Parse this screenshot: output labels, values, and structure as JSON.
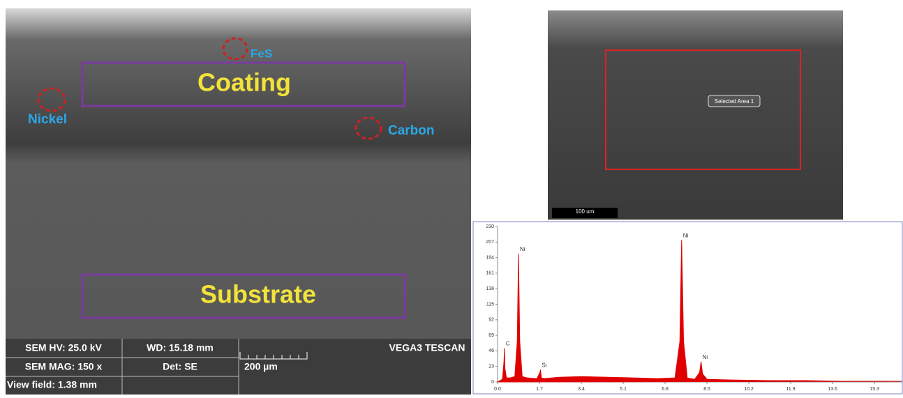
{
  "sem_left": {
    "labels": {
      "fes": "FeS",
      "coating": "Coating",
      "nickel": "Nickel",
      "carbon": "Carbon",
      "substrate": "Substrate"
    },
    "info": {
      "hv": "SEM HV: 25.0 kV",
      "wd": "WD: 15.18 mm",
      "brand": "VEGA3 TESCAN",
      "mag": "SEM MAG: 150 x",
      "det": "Det: SE",
      "scale": "200 µm",
      "view": "View field: 1.38 mm"
    }
  },
  "sem_right": {
    "area": "Selected Area 1",
    "scale": "100 um"
  },
  "chart_data": {
    "type": "area",
    "color": "#e00000",
    "x": [
      0,
      0.2,
      0.26,
      0.28,
      0.3,
      0.36,
      0.5,
      0.7,
      0.8,
      0.85,
      0.9,
      1.0,
      1.2,
      1.6,
      1.72,
      1.74,
      1.78,
      1.9,
      2.5,
      3.4,
      4.5,
      5.5,
      6.5,
      7.2,
      7.4,
      7.47,
      7.55,
      7.7,
      8.0,
      8.2,
      8.26,
      8.32,
      8.5,
      9.5,
      11,
      12.5,
      14,
      15.5,
      16.4
    ],
    "values": [
      0,
      4,
      30,
      50,
      20,
      6,
      6,
      8,
      60,
      190,
      60,
      8,
      6,
      5,
      14,
      18,
      6,
      5,
      7,
      8,
      7,
      6,
      5,
      6,
      60,
      210,
      60,
      6,
      4,
      14,
      30,
      12,
      4,
      3,
      2,
      2,
      1,
      1,
      1
    ],
    "annotations": [
      {
        "text": "C",
        "x": 0.28,
        "y": 50
      },
      {
        "text": "Ni",
        "x": 0.85,
        "y": 190
      },
      {
        "text": "Si",
        "x": 1.74,
        "y": 18
      },
      {
        "text": "Ni",
        "x": 7.47,
        "y": 210
      },
      {
        "text": "Ni",
        "x": 8.26,
        "y": 30
      }
    ],
    "xlim": [
      0,
      16.4
    ],
    "ylim": [
      0,
      230
    ],
    "xticks": [
      {
        "value": 0,
        "label": "0.0"
      },
      1.7,
      3.4,
      5.1,
      6.8,
      8.5,
      10.2,
      11.9,
      13.6,
      15.3
    ],
    "yticks": [
      0,
      23,
      46,
      69,
      92,
      115,
      138,
      161,
      184,
      207,
      230
    ]
  }
}
